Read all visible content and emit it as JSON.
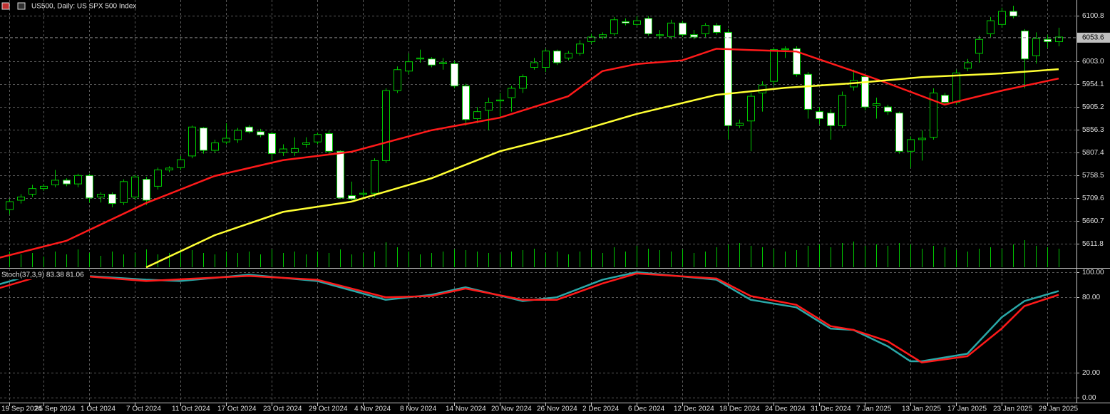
{
  "chart_data": [
    {
      "type": "candlestick",
      "title": "US500, Daily: US SPX 500 Index",
      "categories": [
        "19 Sep 2024",
        null,
        null,
        "25 Sep 2024",
        null,
        null,
        null,
        "1 Oct 2024",
        null,
        null,
        null,
        "7 Oct 2024",
        null,
        null,
        null,
        "11 Oct 2024",
        null,
        null,
        null,
        "17 Oct 2024",
        null,
        null,
        null,
        "23 Oct 2024",
        null,
        null,
        null,
        "29 Oct 2024",
        null,
        null,
        null,
        "4 Nov 2024",
        null,
        null,
        null,
        "8 Nov 2024",
        null,
        null,
        null,
        "14 Nov 2024",
        null,
        null,
        null,
        "20 Nov 2024",
        null,
        null,
        null,
        "26 Nov 2024",
        null,
        null,
        null,
        "2 Dec 2024",
        null,
        null,
        null,
        "6 Dec 2024",
        null,
        null,
        null,
        "12 Dec 2024",
        null,
        null,
        null,
        "18 Dec 2024",
        null,
        null,
        null,
        "24 Dec 2024",
        null,
        null,
        null,
        "31 Dec 2024",
        null,
        null,
        null,
        "7 Jan 2025",
        null,
        null,
        null,
        "13 Jan 2025",
        null,
        null,
        null,
        "17 Jan 2025",
        null,
        null,
        null,
        "23 Jan 2025",
        null,
        null,
        null,
        "29 Jan 2025",
        null
      ],
      "open": [
        5685,
        5705,
        5718,
        5730,
        5738,
        5748,
        5740,
        5758,
        5712,
        5718,
        5700,
        5712,
        5750,
        5735,
        5770,
        5775,
        5800,
        5860,
        5812,
        5830,
        5835,
        5862,
        5852,
        5848,
        5808,
        5808,
        5825,
        5830,
        5848,
        5810,
        5715,
        5718,
        5720,
        5790,
        5940,
        5982,
        6008,
        6008,
        5998,
        5998,
        5950,
        5880,
        5898,
        5918,
        5925,
        5945,
        5990,
        5990,
        6025,
        6010,
        6020,
        6045,
        6055,
        6062,
        6088,
        6082,
        6095,
        6058,
        6056,
        6085,
        6060,
        6062,
        6080,
        6065,
        5865,
        5875,
        5935,
        5960,
        6028,
        6030,
        5975,
        5895,
        5892,
        5865,
        5948,
        5970,
        5908,
        5905,
        5892,
        5810,
        5835,
        5840,
        5930,
        5915,
        5988,
        6020,
        6062,
        6082,
        6110,
        6068,
        6015,
        6050,
        6045
      ],
      "high": [
        5708,
        5718,
        5738,
        5740,
        5770,
        5752,
        5762,
        5762,
        5722,
        5722,
        5750,
        5760,
        5755,
        5775,
        5778,
        5800,
        5865,
        5862,
        5835,
        5870,
        5860,
        5866,
        5858,
        5852,
        5825,
        5840,
        5840,
        5850,
        5855,
        5812,
        5745,
        5728,
        5795,
        5945,
        5992,
        6020,
        6028,
        6012,
        6010,
        6004,
        5955,
        5905,
        5925,
        5935,
        5950,
        5975,
        6010,
        6030,
        6028,
        6025,
        6048,
        6062,
        6065,
        6098,
        6095,
        6100,
        6100,
        6070,
        6092,
        6090,
        6070,
        6085,
        6085,
        6072,
        5878,
        5935,
        5960,
        6032,
        6035,
        6035,
        5980,
        5905,
        5900,
        5938,
        5985,
        5975,
        5925,
        5910,
        5895,
        5842,
        5855,
        5945,
        5935,
        5985,
        6008,
        6058,
        6098,
        6118,
        6122,
        6072,
        6065,
        6060,
        6075
      ],
      "low": [
        5675,
        5698,
        5712,
        5725,
        5733,
        5735,
        5733,
        5700,
        5700,
        5690,
        5695,
        5705,
        5695,
        5728,
        5765,
        5770,
        5795,
        5805,
        5806,
        5825,
        5828,
        5848,
        5840,
        5790,
        5800,
        5800,
        5818,
        5825,
        5805,
        5708,
        5705,
        5712,
        5712,
        5785,
        5935,
        5975,
        6000,
        5990,
        5985,
        5945,
        5865,
        5870,
        5855,
        5880,
        5895,
        5935,
        5985,
        5980,
        5995,
        6005,
        6015,
        6040,
        6050,
        6058,
        6080,
        6078,
        6058,
        6050,
        6050,
        6055,
        6050,
        6055,
        6060,
        5835,
        5860,
        5810,
        5895,
        5950,
        6010,
        5970,
        5880,
        5868,
        5835,
        5860,
        5940,
        5898,
        5880,
        5888,
        5805,
        5775,
        5790,
        5835,
        5910,
        5910,
        5982,
        6000,
        6055,
        6075,
        6095,
        5945,
        5998,
        6032,
        6035
      ],
      "close": [
        5702,
        5712,
        5730,
        5735,
        5748,
        5740,
        5758,
        5710,
        5718,
        5698,
        5745,
        5755,
        5705,
        5770,
        5774,
        5792,
        5862,
        5812,
        5828,
        5838,
        5855,
        5852,
        5845,
        5805,
        5815,
        5816,
        5828,
        5846,
        5810,
        5710,
        5708,
        5720,
        5790,
        5940,
        5985,
        6002,
        6010,
        5995,
        6000,
        5950,
        5878,
        5895,
        5915,
        5920,
        5945,
        5970,
        6000,
        6025,
        6000,
        6020,
        6040,
        6055,
        6060,
        6092,
        6085,
        6090,
        6062,
        6060,
        6085,
        6060,
        6055,
        6080,
        6065,
        5865,
        5870,
        5928,
        5952,
        6028,
        6030,
        5975,
        5900,
        5880,
        5865,
        5930,
        5962,
        5905,
        5912,
        5895,
        5810,
        5835,
        5838,
        5935,
        5915,
        5978,
        6000,
        6050,
        6090,
        6110,
        6100,
        6008,
        6052,
        6045,
        6055
      ],
      "volume": [
        22,
        18,
        20,
        15,
        22,
        18,
        25,
        20,
        16,
        22,
        18,
        20,
        25,
        18,
        20,
        22,
        24,
        20,
        18,
        22,
        20,
        22,
        18,
        25,
        20,
        22,
        18,
        22,
        20,
        25,
        18,
        20,
        22,
        35,
        28,
        22,
        18,
        20,
        22,
        25,
        24,
        22,
        20,
        18,
        22,
        24,
        26,
        20,
        22,
        18,
        22,
        24,
        20,
        28,
        22,
        30,
        26,
        24,
        22,
        25,
        20,
        22,
        28,
        32,
        34,
        30,
        28,
        26,
        22,
        24,
        30,
        32,
        28,
        34,
        36,
        30,
        32,
        30,
        34,
        32,
        26,
        30,
        28,
        24,
        22,
        26,
        28,
        26,
        32,
        38,
        30,
        28,
        26
      ],
      "up_color": "#000000",
      "down_color": "#ffffff",
      "wick_color": "#00c800",
      "volume_color": "#00c800",
      "series": [
        {
          "color": "#ff1a1a",
          "x": [
            -1,
            5,
            12,
            18,
            24,
            30,
            37,
            43,
            49,
            52,
            55,
            59,
            62,
            65,
            69,
            74,
            77,
            82,
            87,
            92
          ],
          "values": [
            5581,
            5618,
            5699,
            5757,
            5791,
            5809,
            5855,
            5882,
            5928,
            5982,
            5997,
            6005,
            6030,
            6027,
            6024,
            5982,
            5956,
            5910,
            5940,
            5966
          ]
        },
        {
          "color": "#ffff33",
          "x": [
            12,
            18,
            24,
            30,
            37,
            43,
            49,
            55,
            62,
            68,
            74,
            80,
            87,
            92
          ],
          "values": [
            5561,
            5630,
            5680,
            5702,
            5752,
            5810,
            5847,
            5890,
            5931,
            5946,
            5956,
            5969,
            5977,
            5986
          ]
        }
      ],
      "last_price": 6053.6,
      "ylim": [
        5561.4,
        6134.4
      ],
      "yticks": [
        6100.8,
        {
          "value": 6003,
          "label": "6003.0"
        },
        5954.1,
        5905.2,
        5856.3,
        5807.4,
        5758.5,
        5709.6,
        5660.7,
        5611.8
      ],
      "grid": true
    },
    {
      "type": "line",
      "title": "Stoch(37,3,9) 83.38 81.06",
      "series": [
        {
          "color": "#2aa8a8",
          "x": [
            -1,
            2,
            5,
            12,
            15,
            21,
            27,
            33,
            37,
            40,
            45,
            48,
            52,
            55,
            62,
            65,
            69,
            72,
            74,
            77,
            79,
            80,
            84,
            87,
            89,
            92
          ],
          "values": [
            90,
            98,
            98,
            94,
            93,
            98,
            93,
            78,
            82,
            88,
            77,
            80,
            94,
            100,
            94,
            78,
            72,
            55,
            54,
            41,
            29,
            29,
            35,
            64,
            77,
            85
          ]
        },
        {
          "color": "#ff1a1a",
          "x": [
            -1,
            2,
            5,
            12,
            21,
            27,
            33,
            37,
            40,
            45,
            48,
            52,
            55,
            62,
            65,
            69,
            72,
            74,
            77,
            80,
            84,
            87,
            89,
            92
          ],
          "values": [
            87,
            95,
            98,
            93,
            97,
            94,
            80,
            81,
            87,
            78,
            78,
            91,
            99,
            95,
            81,
            74,
            57,
            54,
            45,
            28,
            33,
            55,
            73,
            82
          ]
        }
      ],
      "ylim": [
        0,
        100
      ],
      "yticks": [
        {
          "value": 100,
          "label": "100.00"
        },
        {
          "value": 80,
          "label": "80.00"
        },
        {
          "value": 20,
          "label": "20.00"
        },
        {
          "value": 0,
          "label": "0.00"
        }
      ],
      "grid": true
    }
  ]
}
